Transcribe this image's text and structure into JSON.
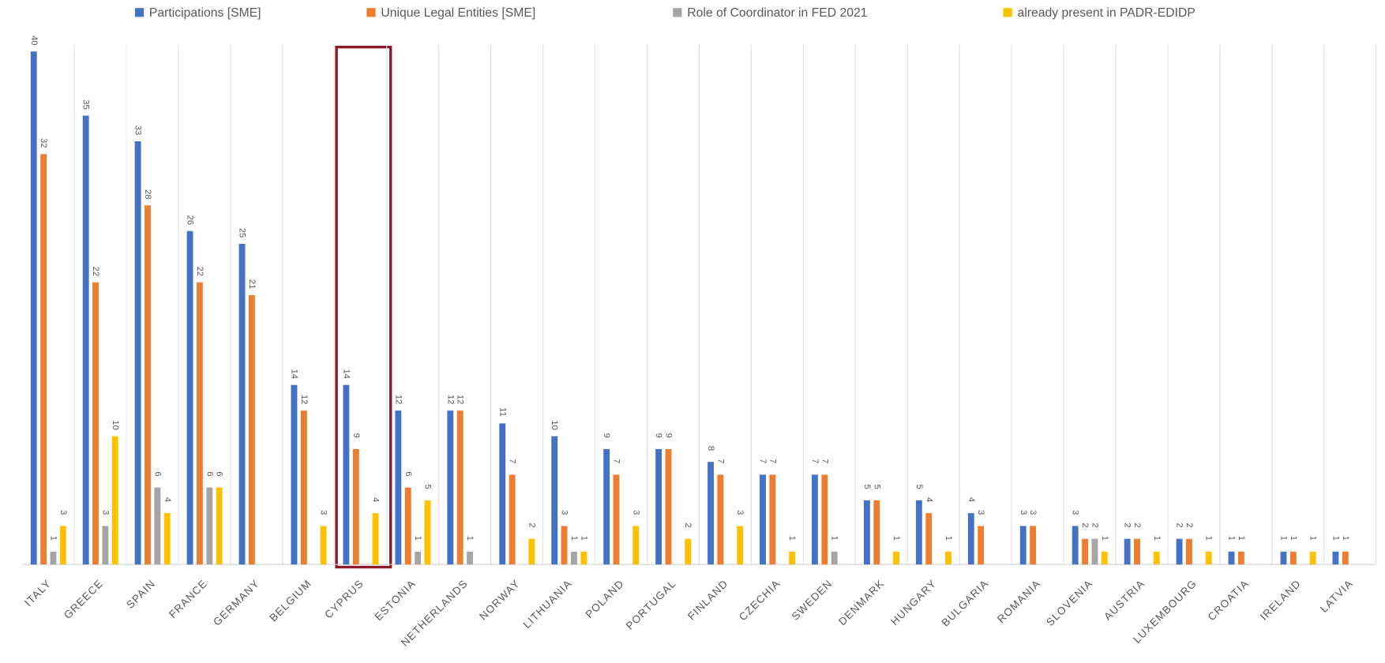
{
  "chart_data": {
    "type": "bar",
    "categories": [
      "ITALY",
      "GREECE",
      "SPAIN",
      "FRANCE",
      "GERMANY",
      "BELGIUM",
      "CYPRUS",
      "ESTONIA",
      "NETHERLANDS",
      "NORWAY",
      "LITHUANIA",
      "POLAND",
      "PORTUGAL",
      "FINLAND",
      "CZECHIA",
      "SWEDEN",
      "DENMARK",
      "HUNGARY",
      "BULGARIA",
      "ROMANIA",
      "SLOVENIA",
      "AUSTRIA",
      "LUXEMBOURG",
      "CROATIA",
      "IRELAND",
      "LATVIA"
    ],
    "series": [
      {
        "name": "Participations [SME]",
        "color": "#4472c4",
        "values": [
          40,
          35,
          33,
          26,
          25,
          14,
          14,
          12,
          12,
          11,
          10,
          9,
          9,
          8,
          7,
          7,
          5,
          5,
          4,
          3,
          3,
          2,
          2,
          1,
          1,
          1
        ]
      },
      {
        "name": "Unique Legal Entities [SME]",
        "color": "#ed7d31",
        "values": [
          32,
          22,
          28,
          22,
          21,
          12,
          9,
          6,
          12,
          7,
          3,
          7,
          9,
          7,
          7,
          7,
          5,
          4,
          3,
          3,
          2,
          2,
          2,
          1,
          1,
          1
        ]
      },
      {
        "name": "Role of Coordinator in FED 2021",
        "color": "#a5a5a5",
        "values": [
          1,
          3,
          6,
          6,
          null,
          null,
          null,
          1,
          1,
          null,
          1,
          null,
          null,
          null,
          null,
          1,
          null,
          null,
          null,
          null,
          2,
          null,
          null,
          null,
          null,
          null
        ]
      },
      {
        "name": "already present in PADR-EDIDP",
        "color": "#ffc000",
        "values": [
          3,
          10,
          4,
          6,
          null,
          3,
          4,
          5,
          null,
          2,
          1,
          3,
          2,
          3,
          1,
          null,
          1,
          1,
          null,
          null,
          1,
          1,
          1,
          null,
          1,
          null
        ]
      }
    ],
    "ylim": [
      0,
      40
    ],
    "grid": true,
    "legend": "top"
  }
}
